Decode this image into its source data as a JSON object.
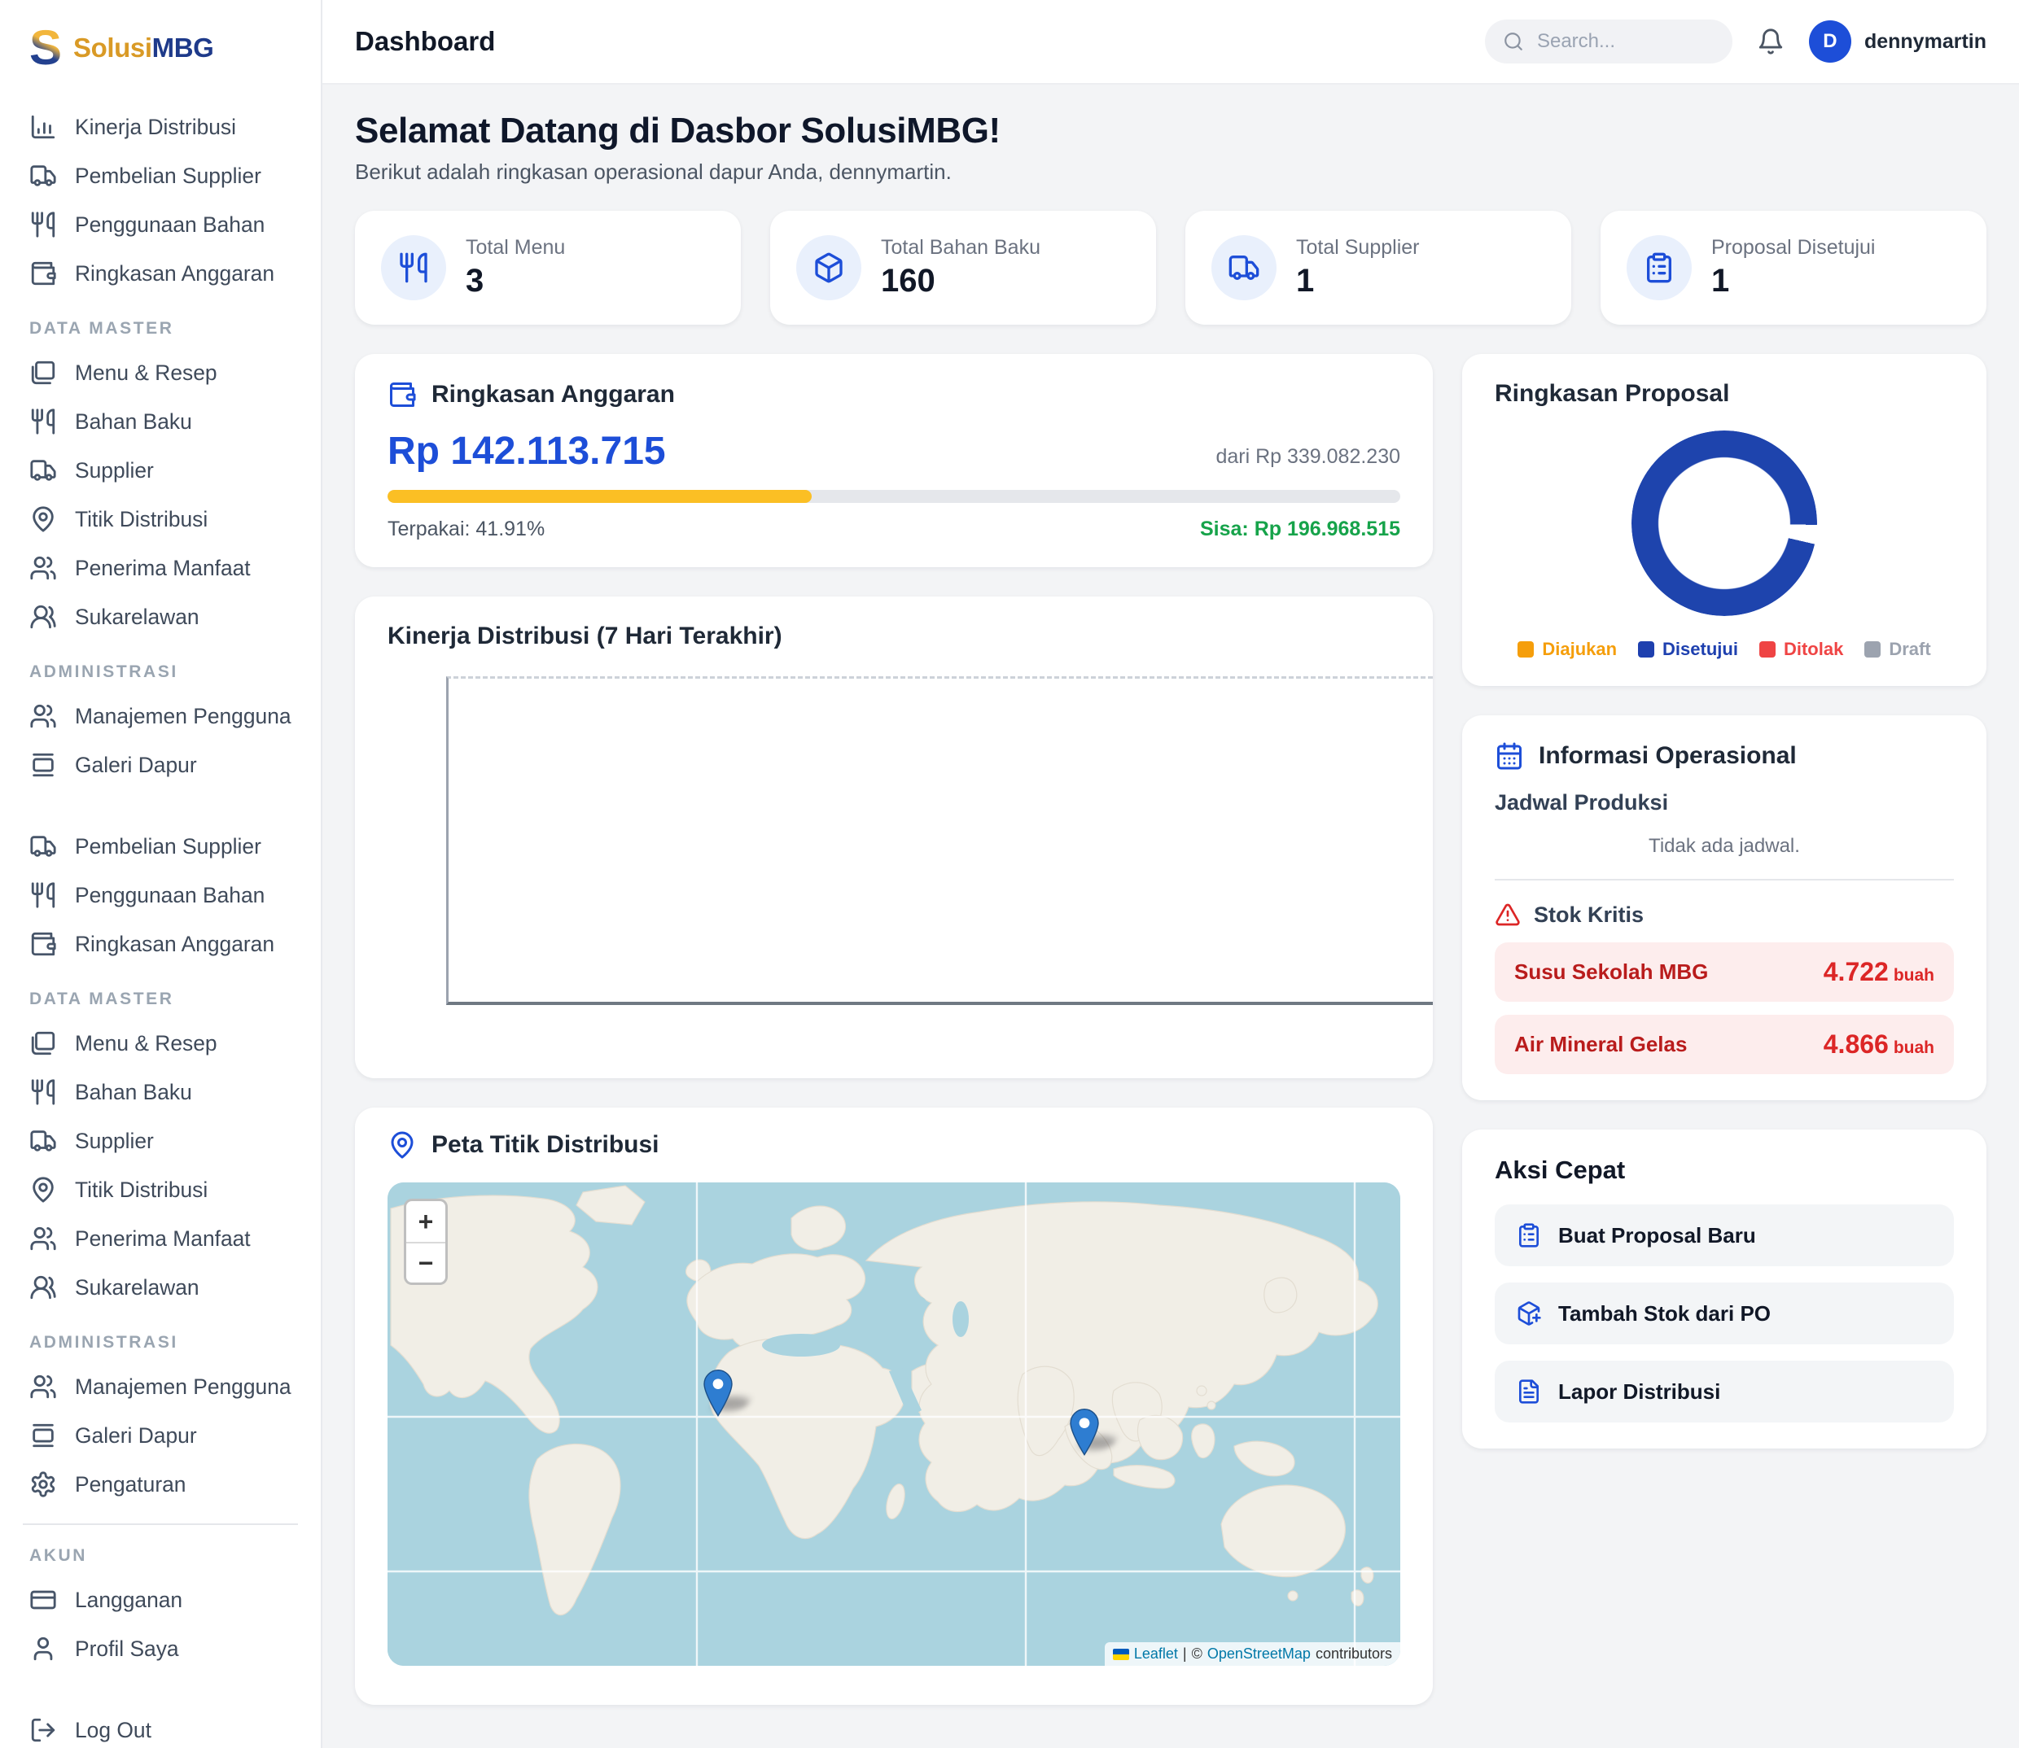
{
  "brand": {
    "logo_letter": "S",
    "name_gold": "Solusi",
    "name_navy": "MBG"
  },
  "header": {
    "title": "Dashboard",
    "search_placeholder": "Search...",
    "user_initial": "D",
    "username": "dennymartin"
  },
  "welcome": {
    "title": "Selamat Datang di Dasbor SolusiMBG!",
    "subtitle": "Berikut adalah ringkasan operasional dapur Anda, dennymartin."
  },
  "stats": [
    {
      "icon": "utensils",
      "label": "Total Menu",
      "value": "3"
    },
    {
      "icon": "package",
      "label": "Total Bahan Baku",
      "value": "160"
    },
    {
      "icon": "truck",
      "label": "Total Supplier",
      "value": "1"
    },
    {
      "icon": "clipboard",
      "label": "Proposal Disetujui",
      "value": "1"
    }
  ],
  "budget": {
    "title": "Ringkasan Anggaran",
    "icon": "wallet",
    "amount": "Rp 142.113.715",
    "of_total": "dari Rp 339.082.230",
    "percent_used": 41.91,
    "used_label": "Terpakai: 41.91%",
    "remaining_label": "Sisa: Rp 196.968.515",
    "bar_color": "#fbbf24"
  },
  "performance": {
    "title": "Kinerja Distribusi (7 Hari Terakhir)"
  },
  "map": {
    "title": "Peta Titik Distribusi",
    "icon": "pin",
    "zoom_in": "+",
    "zoom_out": "−",
    "attribution": {
      "leaflet": "Leaflet",
      "sep": "|",
      "copy": "©",
      "osm": "OpenStreetMap",
      "contributors": "contributors"
    },
    "markers": [
      {
        "name": "distribution-point-west-africa",
        "x": 32.6,
        "y": 48.5
      },
      {
        "name": "distribution-point-indonesia",
        "x": 68.8,
        "y": 56.5
      }
    ]
  },
  "proposal": {
    "title": "Ringkasan Proposal",
    "chart_data": {
      "type": "pie",
      "labels": [
        "Diajukan",
        "Disetujui",
        "Ditolak",
        "Draft"
      ],
      "values": [
        0,
        1,
        0,
        0
      ],
      "colors": [
        "#f59e0b",
        "#1e40af",
        "#ef4444",
        "#9ca3af"
      ],
      "ring_color": "#1e44ad",
      "legend_position": "bottom"
    },
    "legend": [
      {
        "label": "Diajukan",
        "color": "#f59e0b"
      },
      {
        "label": "Disetujui",
        "color": "#1e40af"
      },
      {
        "label": "Ditolak",
        "color": "#ef4444"
      },
      {
        "label": "Draft",
        "color": "#9ca3af"
      }
    ]
  },
  "operational": {
    "title": "Informasi Operasional",
    "icon": "calendar",
    "schedule_heading": "Jadwal Produksi",
    "schedule_empty": "Tidak ada jadwal.",
    "stock_heading": "Stok Kritis",
    "stock_items": [
      {
        "name": "Susu Sekolah MBG",
        "qty": "4.722",
        "unit": "buah"
      },
      {
        "name": "Air Mineral Gelas",
        "qty": "4.866",
        "unit": "buah"
      }
    ]
  },
  "quick_actions": {
    "title": "Aksi Cepat",
    "actions": [
      {
        "icon": "clipboard",
        "label": "Buat Proposal Baru"
      },
      {
        "icon": "package-plus",
        "label": "Tambah Stok dari PO"
      },
      {
        "icon": "file",
        "label": "Lapor Distribusi"
      }
    ]
  },
  "sidebar": {
    "sections": [
      {
        "label": "",
        "items": [
          {
            "icon": "chart",
            "label": "Kinerja Distribusi"
          },
          {
            "icon": "truck",
            "label": "Pembelian Supplier"
          },
          {
            "icon": "utensils",
            "label": "Penggunaan Bahan"
          },
          {
            "icon": "wallet",
            "label": "Ringkasan Anggaran"
          }
        ]
      },
      {
        "label": "DATA MASTER",
        "items": [
          {
            "icon": "book",
            "label": "Menu & Resep"
          },
          {
            "icon": "utensils",
            "label": "Bahan Baku"
          },
          {
            "icon": "truck",
            "label": "Supplier"
          },
          {
            "icon": "pin",
            "label": "Titik Distribusi"
          },
          {
            "icon": "users",
            "label": "Penerima Manfaat"
          },
          {
            "icon": "users2",
            "label": "Sukarelawan"
          }
        ]
      },
      {
        "label": "ADMINISTRASI",
        "items": [
          {
            "icon": "users",
            "label": "Manajemen Pengguna"
          },
          {
            "icon": "gallery",
            "label": "Galeri Dapur"
          }
        ]
      },
      {
        "label": "",
        "gap": true,
        "items": [
          {
            "icon": "truck",
            "label": "Pembelian Supplier"
          },
          {
            "icon": "utensils",
            "label": "Penggunaan Bahan"
          },
          {
            "icon": "wallet",
            "label": "Ringkasan Anggaran"
          }
        ]
      },
      {
        "label": "DATA MASTER",
        "items": [
          {
            "icon": "book",
            "label": "Menu & Resep"
          },
          {
            "icon": "utensils",
            "label": "Bahan Baku"
          },
          {
            "icon": "truck",
            "label": "Supplier"
          },
          {
            "icon": "pin",
            "label": "Titik Distribusi"
          },
          {
            "icon": "users",
            "label": "Penerima Manfaat"
          },
          {
            "icon": "users2",
            "label": "Sukarelawan"
          }
        ]
      },
      {
        "label": "ADMINISTRASI",
        "items": [
          {
            "icon": "users",
            "label": "Manajemen Pengguna"
          },
          {
            "icon": "gallery",
            "label": "Galeri Dapur"
          },
          {
            "icon": "gear",
            "label": "Pengaturan"
          }
        ]
      },
      {
        "label": "AKUN",
        "divider": true,
        "items": [
          {
            "icon": "card",
            "label": "Langganan"
          },
          {
            "icon": "user",
            "label": "Profil Saya"
          }
        ]
      },
      {
        "label": "",
        "gap": true,
        "items": [
          {
            "icon": "logout",
            "label": "Log Out"
          }
        ]
      }
    ]
  }
}
